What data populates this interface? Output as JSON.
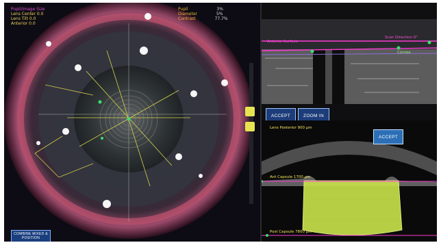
{
  "left_panel": {
    "stats_header": "Pupil/Image Size",
    "stats": [
      "Lens Center  0.0",
      "Lens Tilt      0.0",
      "Anterior          0.0"
    ],
    "right_stats": [
      {
        "label": "Pupil",
        "value": "3%"
      },
      {
        "label": "Diameter",
        "value": "5%"
      },
      {
        "label": "Contrast",
        "value": "77.7%"
      }
    ]
  },
  "buttons": {
    "accept_top": "ACCEPT",
    "zoom_in": "ZOOM IN",
    "accept_bottom": "ACCEPT",
    "combine_position": "COMBINE MIXED & POSITION"
  },
  "top_right": {
    "label_upper_right": "Scan Direction  0°",
    "label_mid_left": "Anterior Surface",
    "label_right": "Cornea"
  },
  "bottom_right": {
    "lens_label": "Lens Posterior  900 µm",
    "ant_capsule": "Ant Capsule  1700 µm",
    "post_capsule": "Post Capsule  7800 µm"
  },
  "colors": {
    "accent_button": "#1d3d7a",
    "overlay_yellow": "#e9c94a",
    "overlay_magenta": "#ff4ad8",
    "lens_fill": "#c8e34a"
  }
}
